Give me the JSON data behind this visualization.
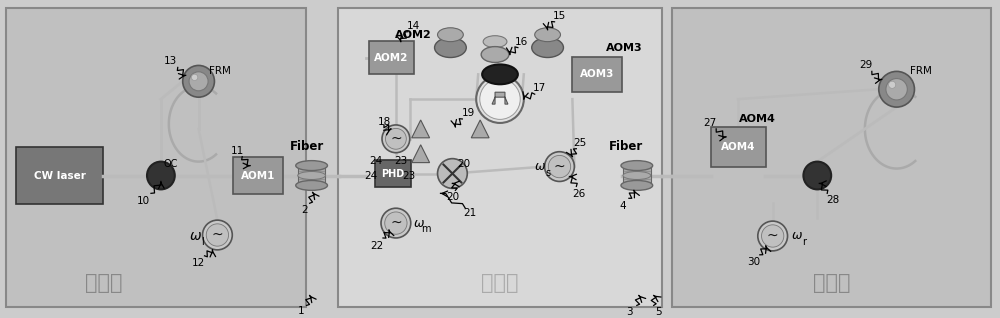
{
  "fig_width": 10.0,
  "fig_height": 3.18,
  "bg_outer": "#cccccc",
  "bg_local": "#bbbbbb",
  "bg_relay": "#e0e0e0",
  "bg_user": "#bbbbbb",
  "labels": {
    "local_cn": "本地端",
    "relay_cn": "中继站",
    "user_cn": "用户端",
    "cw_laser": "CW laser",
    "frm_left": "FRM",
    "frm_right": "FRM",
    "oc": "OC",
    "aom1": "AOM1",
    "aom2": "AOM2",
    "aom3": "AOM3",
    "aom4": "AOM4",
    "fiber_left": "Fiber",
    "fiber_right": "Fiber",
    "omega_l": "ω",
    "omega_l_sub": "l",
    "omega_m": "ω",
    "omega_m_sub": "m",
    "omega_s": "ω",
    "omega_s_sub": "s",
    "omega_r": "ω",
    "omega_r_sub": "r",
    "phd": "PHD",
    "pi": "π"
  },
  "numbers": [
    "1",
    "2",
    "3",
    "4",
    "5",
    "10",
    "11",
    "12",
    "13",
    "14",
    "15",
    "16",
    "17",
    "18",
    "19",
    "20",
    "21",
    "22",
    "23",
    "24",
    "25",
    "26",
    "27",
    "28",
    "29",
    "30"
  ]
}
